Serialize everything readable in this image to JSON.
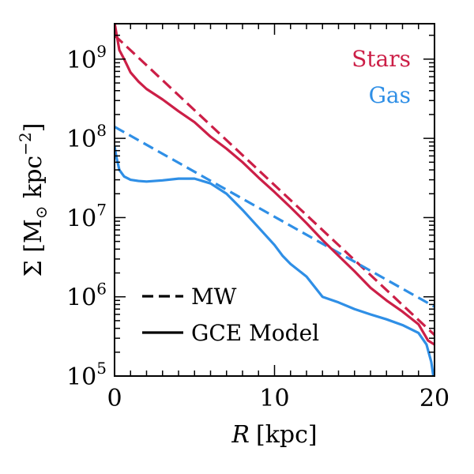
{
  "chart_data": {
    "type": "line",
    "x_axis": {
      "label": "R [kpc]",
      "label_var": "R",
      "label_unit": "[kpc]",
      "range": [
        0,
        20
      ],
      "ticks": [
        0,
        10,
        20
      ],
      "tick_labels": [
        "0",
        "10",
        "20"
      ]
    },
    "y_axis": {
      "label": "Σ [M⊙ kpc−2]",
      "scale": "log",
      "range": [
        100000,
        2800000000
      ],
      "ticks": [
        100000,
        1000000,
        10000000,
        100000000,
        1000000000
      ],
      "tick_labels": [
        {
          "base": "10",
          "exp": "5"
        },
        {
          "base": "10",
          "exp": "6"
        },
        {
          "base": "10",
          "exp": "7"
        },
        {
          "base": "10",
          "exp": "8"
        },
        {
          "base": "10",
          "exp": "9"
        }
      ]
    },
    "series": [
      {
        "name": "Stars",
        "component": "Stars",
        "model": "MW",
        "color": "#cc1f47",
        "dash": true,
        "x": [
          0,
          20
        ],
        "y": [
          2000000000,
          330000
        ]
      },
      {
        "name": "Gas",
        "component": "Gas",
        "model": "MW",
        "color": "#2f8fe6",
        "dash": true,
        "x": [
          0,
          20
        ],
        "y": [
          140000000,
          750000
        ]
      },
      {
        "name": "Stars",
        "component": "Stars",
        "model": "GCE Model",
        "color": "#cc1f47",
        "dash": false,
        "x": [
          0,
          0.1,
          0.3,
          0.6,
          1,
          1.5,
          2,
          3,
          4,
          5,
          6,
          7,
          8,
          9,
          10,
          11,
          12,
          13,
          14,
          15,
          16,
          17,
          18,
          19,
          19.6,
          20
        ],
        "y": [
          2900000000,
          2200000000,
          1300000000,
          1000000000,
          680000000,
          520000000,
          420000000,
          310000000,
          220000000,
          160000000,
          105000000,
          74000000,
          50000000,
          32000000,
          21000000,
          13500000,
          8500000,
          5200000,
          3300000,
          2100000,
          1300000,
          900000,
          650000,
          450000,
          280000,
          250000
        ]
      },
      {
        "name": "Gas",
        "component": "Gas",
        "model": "GCE Model",
        "color": "#2f8fe6",
        "dash": false,
        "x": [
          0,
          0.1,
          0.3,
          0.6,
          1,
          1.5,
          2,
          3,
          4,
          5,
          6,
          7,
          8,
          9,
          10,
          10.5,
          11,
          12,
          13,
          14,
          15,
          16,
          17,
          18,
          19,
          19.5,
          19.8,
          20
        ],
        "y": [
          80000000,
          60000000,
          40000000,
          33000000,
          30000000,
          29000000,
          28500000,
          29500000,
          31000000,
          31000000,
          27000000,
          20000000,
          12500000,
          7500000,
          4500000,
          3300000,
          2600000,
          1800000,
          1000000,
          850000,
          700000,
          600000,
          520000,
          440000,
          350000,
          250000,
          150000,
          80000
        ]
      }
    ],
    "legend": {
      "series_labels": [
        {
          "text": "Stars",
          "color": "#cc1f47"
        },
        {
          "text": "Gas",
          "color": "#2f8fe6"
        }
      ],
      "series_placement": "top-right",
      "style_labels": [
        {
          "text": "MW",
          "style": "dashed"
        },
        {
          "text": "GCE Model",
          "style": "solid"
        }
      ],
      "style_placement": "bottom-left"
    },
    "grid": false
  }
}
